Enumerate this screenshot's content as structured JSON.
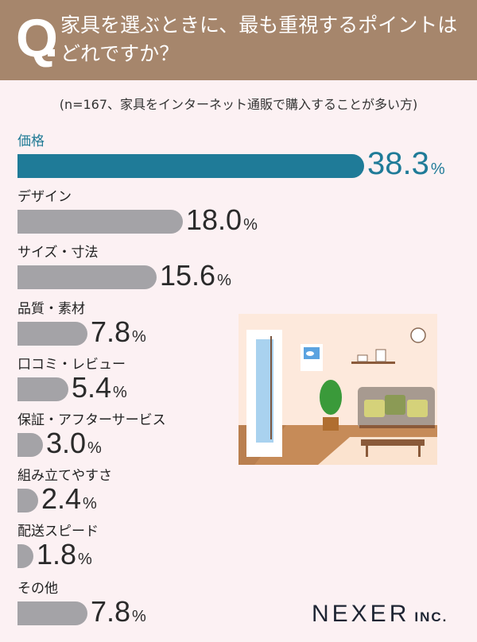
{
  "header": {
    "q_mark": "Q",
    "title": "家具を選ぶときに、最も重視するポイントはどれですか？",
    "background": "#a6866c"
  },
  "note": "(n=167、家具をインターネット通販で購入することが多い方)",
  "items": [
    {
      "label": "価格",
      "value": "38.3",
      "unit": "%",
      "highlight": true
    },
    {
      "label": "デザイン",
      "value": "18.0",
      "unit": "%"
    },
    {
      "label": "サイズ・寸法",
      "value": "15.6",
      "unit": "%"
    },
    {
      "label": "品質・素材",
      "value": "7.8",
      "unit": "%"
    },
    {
      "label": "口コミ・レビュー",
      "value": "5.4",
      "unit": "%"
    },
    {
      "label": "保証・アフターサービス",
      "value": "3.0",
      "unit": "%"
    },
    {
      "label": "組み立てやすさ",
      "value": "2.4",
      "unit": "%"
    },
    {
      "label": "配送スピード",
      "value": "1.8",
      "unit": "%"
    },
    {
      "label": "その他",
      "value": "7.8",
      "unit": "%"
    }
  ],
  "colors": {
    "highlight": "#1f7b98",
    "bar": "#a4a3a7",
    "background": "#fcf1f3"
  },
  "illustration": "living-room-illustration",
  "logo": {
    "name": "NEXER",
    "suffix": "INC."
  },
  "chart_data": {
    "type": "bar",
    "orientation": "horizontal",
    "title": "家具を選ぶときに、最も重視するポイントはどれですか？",
    "subtitle": "(n=167、家具をインターネット通販で購入することが多い方)",
    "categories": [
      "価格",
      "デザイン",
      "サイズ・寸法",
      "品質・素材",
      "口コミ・レビュー",
      "保証・アフターサービス",
      "組み立てやすさ",
      "配送スピード",
      "その他"
    ],
    "values": [
      38.3,
      18.0,
      15.6,
      7.8,
      5.4,
      3.0,
      2.4,
      1.8,
      7.8
    ],
    "unit": "%",
    "xlabel": "",
    "ylabel": "",
    "grid": false,
    "legend": false
  }
}
